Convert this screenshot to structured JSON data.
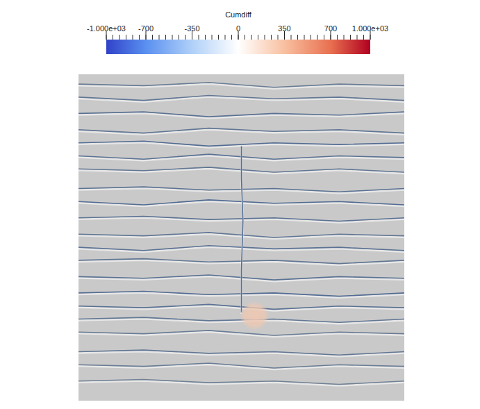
{
  "chart_data": {
    "type": "heatmap",
    "xlim": [
      0,
      100
    ],
    "ylim": [
      0,
      100
    ],
    "tick_labels": false,
    "background_value": 0,
    "colorbar": {
      "title": "Cumdiff",
      "range": [
        -1000,
        1000
      ],
      "ticks": [
        {
          "value": -1000,
          "label": "-1.000e+03"
        },
        -700,
        -350,
        0,
        350,
        700,
        {
          "value": 1000,
          "label": "1.000e+03"
        }
      ]
    },
    "channels": [
      {
        "x": [
          0,
          20,
          40,
          60,
          80,
          100
        ],
        "y": [
          97,
          96.5,
          97.5,
          96,
          97,
          96.5
        ],
        "value": -350
      },
      {
        "x": [
          0,
          20,
          40,
          60,
          80,
          100
        ],
        "y": [
          93,
          92,
          93.5,
          92.5,
          93,
          92
        ],
        "value": -400
      },
      {
        "x": [
          0,
          20,
          40,
          60,
          80,
          100
        ],
        "y": [
          88,
          88.5,
          87,
          88,
          87.5,
          88.5
        ],
        "value": -450
      },
      {
        "x": [
          0,
          20,
          40,
          60,
          80,
          100
        ],
        "y": [
          83,
          82,
          83.5,
          82.5,
          83,
          82
        ],
        "value": -400
      },
      {
        "x": [
          0,
          20,
          40,
          60,
          80,
          100
        ],
        "y": [
          79,
          79.5,
          78,
          79,
          78.5,
          79
        ],
        "value": -500
      },
      {
        "x": [
          0,
          20,
          40,
          60,
          80,
          100
        ],
        "y": [
          75,
          74,
          75.5,
          74,
          75,
          74.5
        ],
        "value": -450
      },
      {
        "x": [
          0,
          20,
          40,
          60,
          80,
          100
        ],
        "y": [
          71,
          70.5,
          71.5,
          70,
          71,
          70
        ],
        "value": -400
      },
      {
        "x": [
          0,
          20,
          40,
          60,
          80,
          100
        ],
        "y": [
          65,
          65.5,
          64.5,
          65,
          64,
          65
        ],
        "value": -450
      },
      {
        "x": [
          0,
          20,
          40,
          60,
          80,
          100
        ],
        "y": [
          61,
          60,
          61.5,
          60.5,
          61,
          60
        ],
        "value": -500
      },
      {
        "x": [
          0,
          20,
          40,
          60,
          80,
          100
        ],
        "y": [
          56,
          56.5,
          55.5,
          56,
          55,
          56
        ],
        "value": -450
      },
      {
        "x": [
          0,
          20,
          40,
          60,
          80,
          100
        ],
        "y": [
          51,
          50.5,
          51.5,
          50,
          51,
          50.5
        ],
        "value": -400
      },
      {
        "x": [
          0,
          20,
          40,
          60,
          80,
          100
        ],
        "y": [
          47,
          46,
          47.5,
          46.5,
          47,
          46
        ],
        "value": -450
      },
      {
        "x": [
          0,
          20,
          40,
          60,
          80,
          100
        ],
        "y": [
          43,
          43.5,
          42.5,
          43,
          42,
          43
        ],
        "value": -400
      },
      {
        "x": [
          0,
          20,
          40,
          60,
          80,
          100
        ],
        "y": [
          38,
          37.5,
          38.5,
          37,
          38,
          37.5
        ],
        "value": -450
      },
      {
        "x": [
          0,
          20,
          40,
          60,
          80,
          100
        ],
        "y": [
          33,
          33.5,
          32.5,
          33,
          32,
          33
        ],
        "value": -500
      },
      {
        "x": [
          0,
          20,
          40,
          60,
          80,
          100
        ],
        "y": [
          29,
          28.5,
          29.5,
          28,
          29,
          28.5
        ],
        "value": -450
      },
      {
        "x": [
          0,
          20,
          40,
          60,
          80,
          100
        ],
        "y": [
          25,
          25.5,
          24.5,
          25,
          24,
          25
        ],
        "value": -400
      },
      {
        "x": [
          0,
          20,
          40,
          60,
          80,
          100
        ],
        "y": [
          21,
          20.5,
          21.5,
          20,
          21,
          20.5
        ],
        "value": -350
      },
      {
        "x": [
          0,
          20,
          40,
          60,
          80,
          100
        ],
        "y": [
          15,
          15.5,
          14.5,
          15,
          14,
          15
        ],
        "value": -400
      },
      {
        "x": [
          0,
          20,
          40,
          60,
          80,
          100
        ],
        "y": [
          11,
          10.5,
          11.5,
          10,
          11,
          10.5
        ],
        "value": -350
      },
      {
        "x": [
          0,
          20,
          40,
          60,
          80,
          100
        ],
        "y": [
          6,
          6.5,
          5.5,
          6,
          5,
          6
        ],
        "value": -300
      },
      {
        "x": [
          50,
          50,
          50.5,
          50,
          50
        ],
        "y": [
          78,
          68,
          55,
          40,
          27
        ],
        "value": -500
      }
    ],
    "patches": [
      {
        "x": 54,
        "y": 26,
        "radius": 4.5,
        "value": 250
      }
    ]
  }
}
